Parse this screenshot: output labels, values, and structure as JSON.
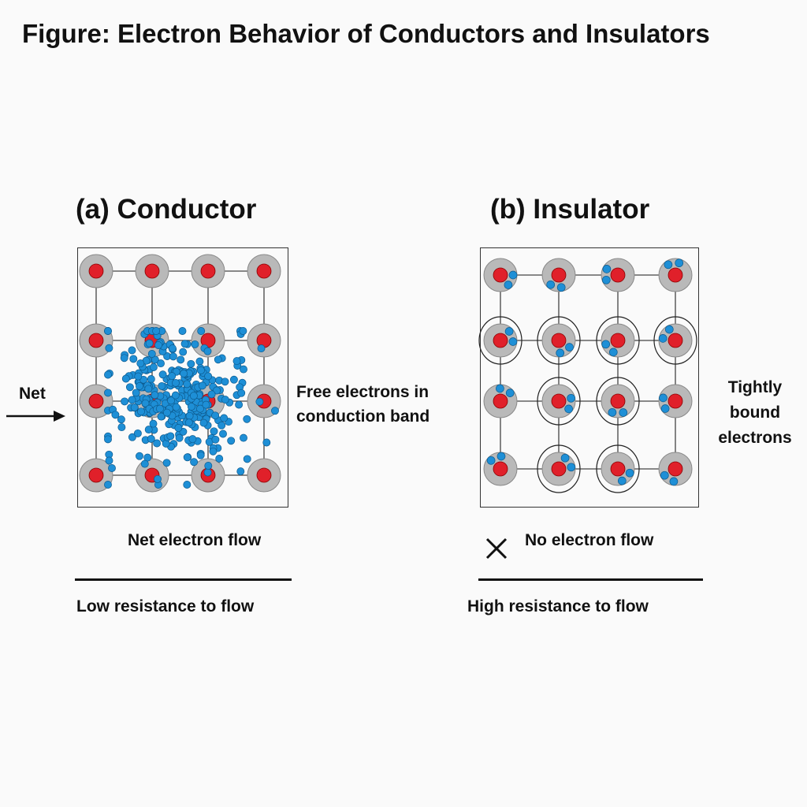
{
  "figure": {
    "title": "Figure: Electron Behavior of Conductors and Insulators"
  },
  "conductor": {
    "title": "(a) Conductor",
    "arrow_label": "Net",
    "side_label_line1": "Free electrons in",
    "side_label_line2": "conduction band",
    "flow_label": "Net electron flow",
    "resistance_label": "Low resistance to flow",
    "lattice_rows": 4,
    "lattice_cols": 4,
    "free_electron_count": 320
  },
  "insulator": {
    "title": "(b) Insulator",
    "side_label_line1": "Tightly",
    "side_label_line2": "bound",
    "side_label_line3": "electrons",
    "flow_label": "No electron flow",
    "resistance_label": "High resistance to flow",
    "lattice_rows": 4,
    "lattice_cols": 4,
    "electrons_per_atom": 2
  },
  "colors": {
    "atom_shell": "#b9b9b9",
    "nucleus": "#e0202a",
    "electron": "#1e8fd6",
    "lattice_line": "#444444"
  },
  "icons": {
    "arrow": "right-arrow-icon",
    "no_flow": "x-mark-icon"
  }
}
